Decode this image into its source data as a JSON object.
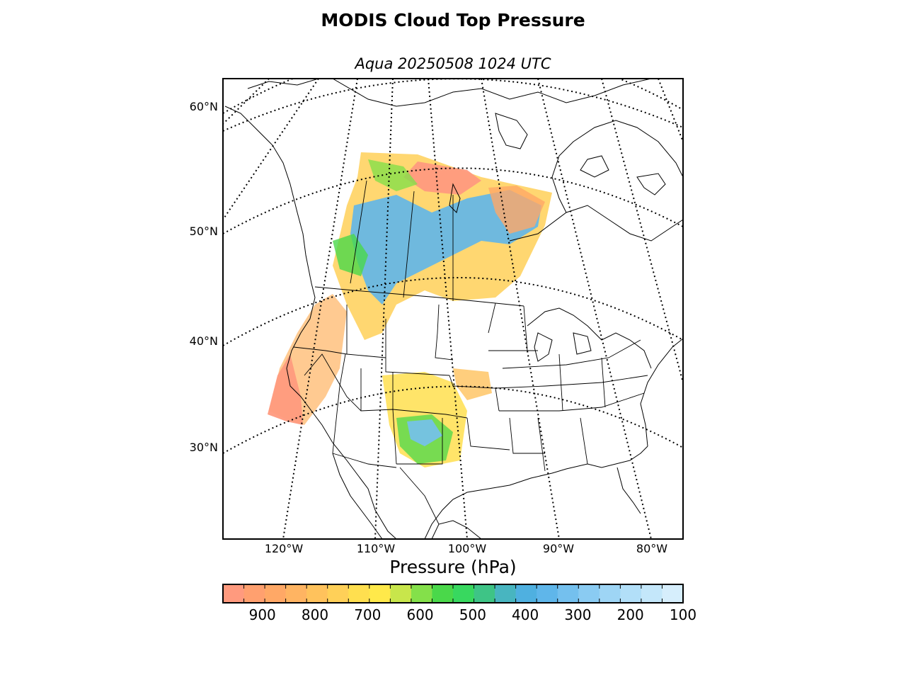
{
  "title": "MODIS Cloud Top Pressure",
  "subtitle": "Aqua 20250508 1024 UTC",
  "lat_labels": [
    "60°N",
    "50°N",
    "40°N",
    "30°N"
  ],
  "lon_labels": [
    "120°W",
    "110°W",
    "100°W",
    "90°W",
    "80°W"
  ],
  "colorbar": {
    "label": "Pressure (hPa)",
    "ticks": [
      "900",
      "800",
      "700",
      "600",
      "500",
      "400",
      "300",
      "200",
      "100"
    ],
    "range": [
      975,
      100
    ],
    "colors": [
      "#ff9a7e",
      "#ffa06f",
      "#ffa866",
      "#ffb462",
      "#ffc25c",
      "#ffd058",
      "#ffdf4f",
      "#ffe94a",
      "#c8e64b",
      "#84e04a",
      "#4ad84a",
      "#38d85f",
      "#3ec486",
      "#48b5c0",
      "#4fb0e0",
      "#5fb6ea",
      "#74c0ee",
      "#8acbf2",
      "#9ed5f5",
      "#b2dff8",
      "#c4e7fa",
      "#d6eefc"
    ]
  },
  "colors": {
    "coast": "#000000",
    "grid": "#000000",
    "background": "#ffffff"
  },
  "map_type": "lambert-conformal",
  "grid": "dotted"
}
